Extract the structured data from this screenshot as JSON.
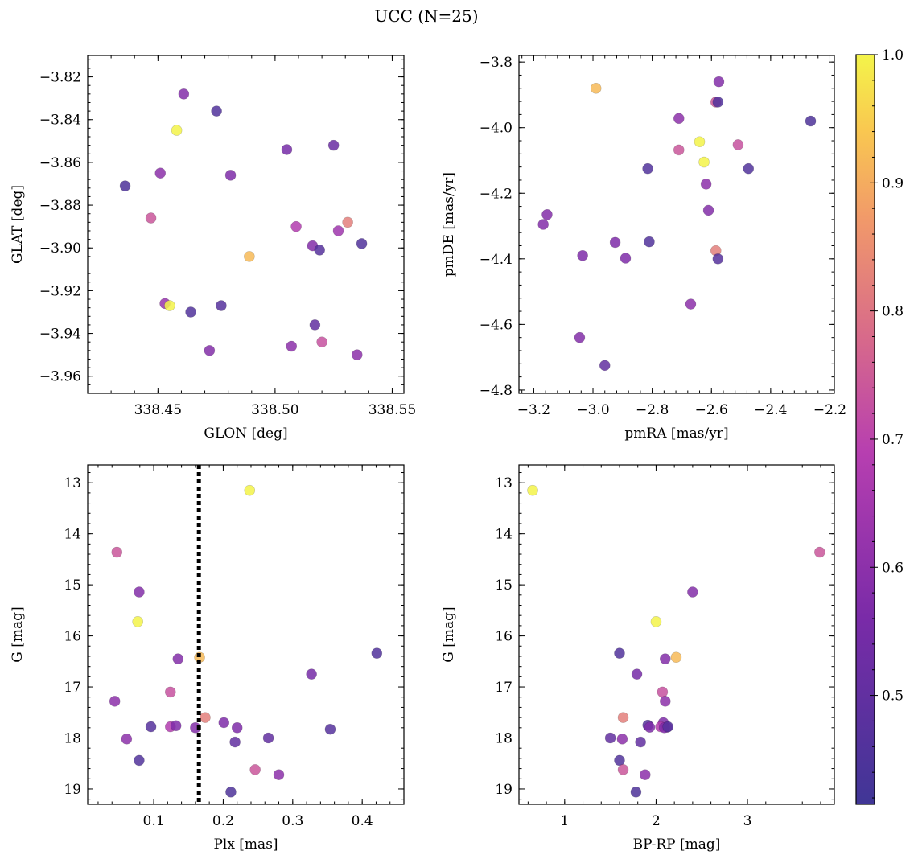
{
  "figure": {
    "title": "UCC (N=25)"
  },
  "chart_data": [
    {
      "type": "scatter",
      "xlabel": "GLON [deg]",
      "ylabel": "GLAT [deg]",
      "xlim": [
        338.42,
        338.555
      ],
      "ylim": [
        -3.968,
        -3.81
      ],
      "xticks": [
        338.45,
        338.5,
        338.55
      ],
      "xtick_labels": [
        "338.45",
        "338.50",
        "338.55"
      ],
      "yticks": [
        -3.82,
        -3.84,
        -3.86,
        -3.88,
        -3.9,
        -3.92,
        -3.94,
        -3.96
      ],
      "ytick_labels": [
        "−3.82",
        "−3.84",
        "−3.86",
        "−3.88",
        "−3.90",
        "−3.92",
        "−3.94",
        "−3.96"
      ],
      "inverted_y": false,
      "points": [
        {
          "x": 338.461,
          "y": -3.828,
          "c": 0.58
        },
        {
          "x": 338.475,
          "y": -3.836,
          "c": 0.46
        },
        {
          "x": 338.458,
          "y": -3.845,
          "c": 1.0
        },
        {
          "x": 338.505,
          "y": -3.854,
          "c": 0.55
        },
        {
          "x": 338.525,
          "y": -3.852,
          "c": 0.52
        },
        {
          "x": 338.436,
          "y": -3.871,
          "c": 0.45
        },
        {
          "x": 338.451,
          "y": -3.865,
          "c": 0.6
        },
        {
          "x": 338.481,
          "y": -3.866,
          "c": 0.57
        },
        {
          "x": 338.447,
          "y": -3.886,
          "c": 0.74
        },
        {
          "x": 338.509,
          "y": -3.89,
          "c": 0.68
        },
        {
          "x": 338.531,
          "y": -3.888,
          "c": 0.82
        },
        {
          "x": 338.527,
          "y": -3.892,
          "c": 0.64
        },
        {
          "x": 338.489,
          "y": -3.904,
          "c": 0.92
        },
        {
          "x": 338.516,
          "y": -3.899,
          "c": 0.58
        },
        {
          "x": 338.519,
          "y": -3.901,
          "c": 0.47
        },
        {
          "x": 338.537,
          "y": -3.898,
          "c": 0.46
        },
        {
          "x": 338.453,
          "y": -3.926,
          "c": 0.62
        },
        {
          "x": 338.455,
          "y": -3.927,
          "c": 1.0
        },
        {
          "x": 338.464,
          "y": -3.93,
          "c": 0.46
        },
        {
          "x": 338.477,
          "y": -3.927,
          "c": 0.47
        },
        {
          "x": 338.517,
          "y": -3.936,
          "c": 0.5
        },
        {
          "x": 338.472,
          "y": -3.948,
          "c": 0.58
        },
        {
          "x": 338.507,
          "y": -3.946,
          "c": 0.6
        },
        {
          "x": 338.52,
          "y": -3.944,
          "c": 0.73
        },
        {
          "x": 338.535,
          "y": -3.95,
          "c": 0.6
        }
      ]
    },
    {
      "type": "scatter",
      "xlabel": "pmRA [mas/yr]",
      "ylabel": "pmDE [mas/yr]",
      "xlim": [
        -3.25,
        -2.185
      ],
      "ylim": [
        -4.81,
        -3.78
      ],
      "xticks": [
        -3.2,
        -3.0,
        -2.8,
        -2.6,
        -2.4,
        -2.2
      ],
      "xtick_labels": [
        "−3.2",
        "−3.0",
        "−2.8",
        "−2.6",
        "−2.4",
        "−2.2"
      ],
      "yticks": [
        -3.8,
        -4.0,
        -4.2,
        -4.4,
        -4.6,
        -4.8
      ],
      "ytick_labels": [
        "−3.8",
        "−4.0",
        "−4.2",
        "−4.4",
        "−4.6",
        "−4.8"
      ],
      "inverted_y": false,
      "points": [
        {
          "x": -2.575,
          "y": -3.86,
          "c": 0.58
        },
        {
          "x": -2.99,
          "y": -3.88,
          "c": 0.92
        },
        {
          "x": -2.585,
          "y": -3.922,
          "c": 0.74
        },
        {
          "x": -2.578,
          "y": -3.922,
          "c": 0.46
        },
        {
          "x": -2.71,
          "y": -3.972,
          "c": 0.6
        },
        {
          "x": -2.265,
          "y": -3.98,
          "c": 0.45
        },
        {
          "x": -2.64,
          "y": -4.043,
          "c": 1.0
        },
        {
          "x": -2.71,
          "y": -4.068,
          "c": 0.74
        },
        {
          "x": -2.51,
          "y": -4.052,
          "c": 0.73
        },
        {
          "x": -2.625,
          "y": -4.105,
          "c": 1.0
        },
        {
          "x": -2.815,
          "y": -4.125,
          "c": 0.46
        },
        {
          "x": -2.475,
          "y": -4.125,
          "c": 0.46
        },
        {
          "x": -2.618,
          "y": -4.172,
          "c": 0.6
        },
        {
          "x": -2.61,
          "y": -4.252,
          "c": 0.58
        },
        {
          "x": -3.155,
          "y": -4.265,
          "c": 0.58
        },
        {
          "x": -3.168,
          "y": -4.295,
          "c": 0.58
        },
        {
          "x": -2.925,
          "y": -4.35,
          "c": 0.57
        },
        {
          "x": -2.81,
          "y": -4.348,
          "c": 0.46
        },
        {
          "x": -2.585,
          "y": -4.375,
          "c": 0.82
        },
        {
          "x": -3.035,
          "y": -4.39,
          "c": 0.57
        },
        {
          "x": -2.89,
          "y": -4.398,
          "c": 0.57
        },
        {
          "x": -2.578,
          "y": -4.4,
          "c": 0.47
        },
        {
          "x": -2.67,
          "y": -4.538,
          "c": 0.6
        },
        {
          "x": -3.045,
          "y": -4.64,
          "c": 0.58
        },
        {
          "x": -2.96,
          "y": -4.725,
          "c": 0.5
        }
      ]
    },
    {
      "type": "scatter",
      "xlabel": "Plx [mas]",
      "ylabel": "G [mag]",
      "xlim": [
        0.005,
        0.46
      ],
      "ylim": [
        19.3,
        12.65
      ],
      "inverted_y": true,
      "xticks": [
        0.1,
        0.2,
        0.3,
        0.4
      ],
      "xtick_labels": [
        "0.1",
        "0.2",
        "0.3",
        "0.4"
      ],
      "yticks": [
        13,
        14,
        15,
        16,
        17,
        18,
        19
      ],
      "ytick_labels": [
        "13",
        "14",
        "15",
        "16",
        "17",
        "18",
        "19"
      ],
      "vline_x": 0.165,
      "points": [
        {
          "x": 0.238,
          "y": 13.15,
          "c": 1.0
        },
        {
          "x": 0.047,
          "y": 14.36,
          "c": 0.74
        },
        {
          "x": 0.079,
          "y": 15.14,
          "c": 0.58
        },
        {
          "x": 0.077,
          "y": 15.72,
          "c": 1.0
        },
        {
          "x": 0.421,
          "y": 16.34,
          "c": 0.46
        },
        {
          "x": 0.166,
          "y": 16.42,
          "c": 0.92
        },
        {
          "x": 0.135,
          "y": 16.45,
          "c": 0.58
        },
        {
          "x": 0.327,
          "y": 16.75,
          "c": 0.55
        },
        {
          "x": 0.124,
          "y": 17.1,
          "c": 0.73
        },
        {
          "x": 0.044,
          "y": 17.28,
          "c": 0.6
        },
        {
          "x": 0.174,
          "y": 17.6,
          "c": 0.82
        },
        {
          "x": 0.201,
          "y": 17.7,
          "c": 0.57
        },
        {
          "x": 0.096,
          "y": 17.78,
          "c": 0.47
        },
        {
          "x": 0.124,
          "y": 17.78,
          "c": 0.68
        },
        {
          "x": 0.132,
          "y": 17.76,
          "c": 0.57
        },
        {
          "x": 0.16,
          "y": 17.8,
          "c": 0.58
        },
        {
          "x": 0.22,
          "y": 17.8,
          "c": 0.57
        },
        {
          "x": 0.354,
          "y": 17.83,
          "c": 0.47
        },
        {
          "x": 0.061,
          "y": 18.02,
          "c": 0.6
        },
        {
          "x": 0.265,
          "y": 18.0,
          "c": 0.5
        },
        {
          "x": 0.217,
          "y": 18.08,
          "c": 0.5
        },
        {
          "x": 0.079,
          "y": 18.44,
          "c": 0.46
        },
        {
          "x": 0.246,
          "y": 18.62,
          "c": 0.74
        },
        {
          "x": 0.28,
          "y": 18.72,
          "c": 0.6
        },
        {
          "x": 0.211,
          "y": 19.06,
          "c": 0.45
        }
      ]
    },
    {
      "type": "scatter",
      "xlabel": "BP-RP [mag]",
      "ylabel": "G [mag]",
      "xlim": [
        0.5,
        3.95
      ],
      "ylim": [
        19.3,
        12.65
      ],
      "inverted_y": true,
      "xticks": [
        1,
        2,
        3
      ],
      "xtick_labels": [
        "1",
        "2",
        "3"
      ],
      "yticks": [
        13,
        14,
        15,
        16,
        17,
        18,
        19
      ],
      "ytick_labels": [
        "13",
        "14",
        "15",
        "16",
        "17",
        "18",
        "19"
      ],
      "points": [
        {
          "x": 0.65,
          "y": 13.15,
          "c": 1.0
        },
        {
          "x": 3.79,
          "y": 14.36,
          "c": 0.74
        },
        {
          "x": 2.4,
          "y": 15.14,
          "c": 0.58
        },
        {
          "x": 2.0,
          "y": 15.72,
          "c": 1.0
        },
        {
          "x": 1.6,
          "y": 16.34,
          "c": 0.46
        },
        {
          "x": 2.22,
          "y": 16.42,
          "c": 0.92
        },
        {
          "x": 2.1,
          "y": 16.45,
          "c": 0.58
        },
        {
          "x": 1.79,
          "y": 16.75,
          "c": 0.55
        },
        {
          "x": 2.07,
          "y": 17.1,
          "c": 0.73
        },
        {
          "x": 2.1,
          "y": 17.28,
          "c": 0.6
        },
        {
          "x": 1.64,
          "y": 17.6,
          "c": 0.82
        },
        {
          "x": 2.08,
          "y": 17.7,
          "c": 0.57
        },
        {
          "x": 1.91,
          "y": 17.75,
          "c": 0.47
        },
        {
          "x": 2.05,
          "y": 17.78,
          "c": 0.68
        },
        {
          "x": 1.93,
          "y": 17.79,
          "c": 0.57
        },
        {
          "x": 2.12,
          "y": 17.79,
          "c": 0.58
        },
        {
          "x": 2.09,
          "y": 17.8,
          "c": 0.57
        },
        {
          "x": 2.13,
          "y": 17.78,
          "c": 0.47
        },
        {
          "x": 1.5,
          "y": 18.0,
          "c": 0.5
        },
        {
          "x": 1.63,
          "y": 18.02,
          "c": 0.6
        },
        {
          "x": 1.83,
          "y": 18.08,
          "c": 0.5
        },
        {
          "x": 1.6,
          "y": 18.44,
          "c": 0.46
        },
        {
          "x": 1.64,
          "y": 18.62,
          "c": 0.74
        },
        {
          "x": 1.88,
          "y": 18.72,
          "c": 0.6
        },
        {
          "x": 1.78,
          "y": 19.06,
          "c": 0.45
        }
      ]
    }
  ],
  "colorbar": {
    "range": [
      0.415,
      1.0
    ],
    "ticks": [
      0.5,
      0.6,
      0.7,
      0.8,
      0.9,
      1.0
    ],
    "tick_labels": [
      "0.5",
      "0.6",
      "0.7",
      "0.8",
      "0.9",
      "1.0"
    ],
    "colormap": "plasma"
  }
}
